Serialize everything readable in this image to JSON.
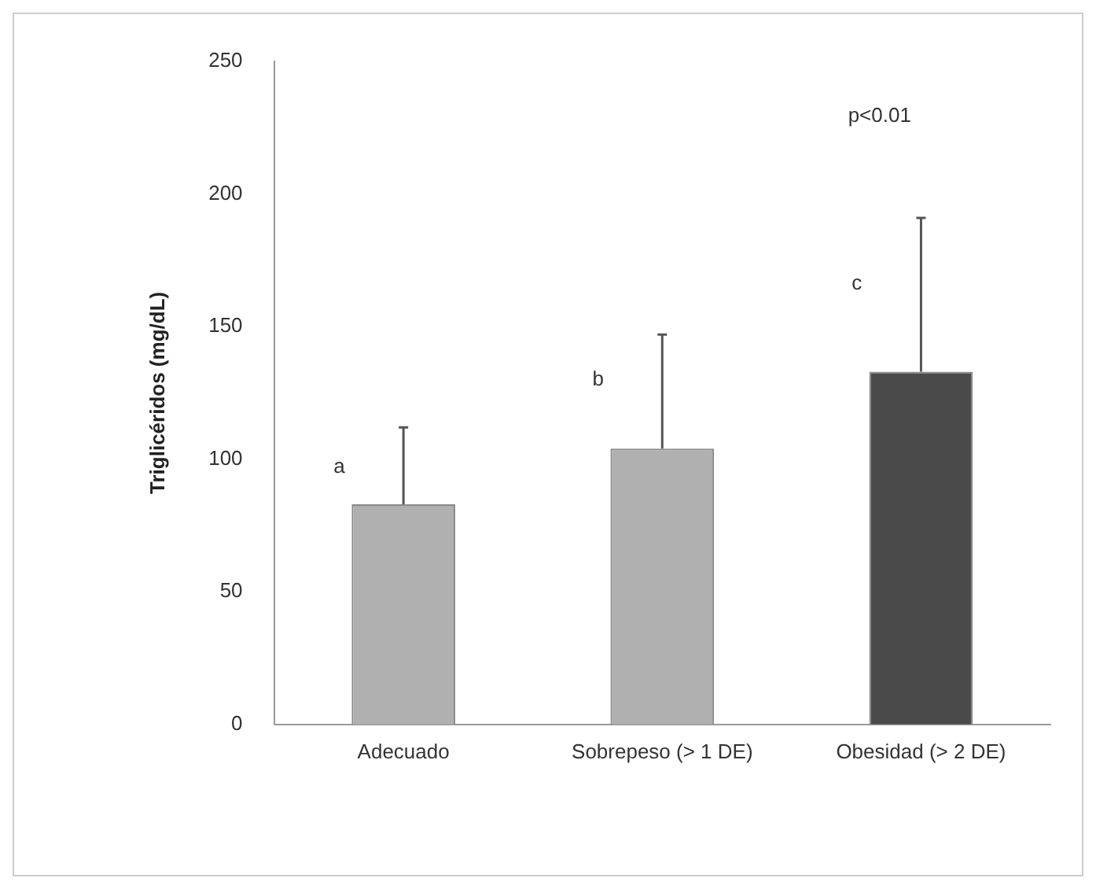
{
  "chart_data": {
    "type": "bar",
    "ylabel": "Triglicéridos (mg/dL)",
    "categories": [
      "Adecuado",
      "Sobrepeso (> 1 DE)",
      "Obesidad (> 2 DE)"
    ],
    "values": [
      83,
      104,
      133
    ],
    "colors": [
      "#b0b0b0",
      "#b0b0b0",
      "#4a4a4a"
    ],
    "errors": [
      [
        83,
        112
      ],
      [
        104,
        147
      ],
      [
        133,
        191
      ]
    ],
    "ylim": [
      0,
      250
    ],
    "yticks": [
      0,
      50,
      100,
      150,
      200,
      250
    ],
    "grid": false,
    "legend": false,
    "annotations": [
      {
        "text": "a",
        "x": "Adecuado",
        "y": 97
      },
      {
        "text": "b",
        "x": "Sobrepeso (> 1 DE)",
        "y": 130
      },
      {
        "text": "c",
        "x": "Obesidad (> 2 DE)",
        "y": 166
      },
      "p<0.01"
    ]
  }
}
